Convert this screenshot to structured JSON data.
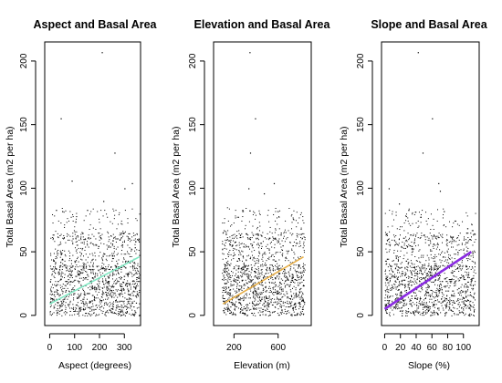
{
  "chart_data": [
    {
      "type": "scatter",
      "title": "Aspect and Basal Area",
      "xlabel": "Aspect (degrees)",
      "ylabel": "Total Basal Area (m2 per ha)",
      "xlim": [
        -20,
        365
      ],
      "ylim": [
        -8,
        215
      ],
      "xticks": [
        0,
        100,
        200,
        300
      ],
      "yticks": [
        0,
        50,
        100,
        150,
        200
      ],
      "grid": false,
      "series": [
        {
          "kind": "points",
          "x_range": [
            0,
            360
          ],
          "outliers": [
            [
              209,
              207
            ],
            [
              44,
              155
            ],
            [
              260,
              128
            ],
            [
              88,
              106
            ],
            [
              330,
              104
            ],
            [
              300,
              100
            ],
            [
              25,
              83
            ],
            [
              50,
              82
            ],
            [
              150,
              83
            ],
            [
              215,
              90
            ]
          ]
        },
        {
          "kind": "trend",
          "color": "#7fe8c3",
          "x": [
            0,
            360
          ],
          "y": [
            9,
            46
          ]
        }
      ]
    },
    {
      "type": "scatter",
      "title": "Elevation and Basal Area",
      "xlabel": "Elevation (m)",
      "ylabel": "Total Basal Area (m2 per ha)",
      "xlim": [
        15,
        900
      ],
      "ylim": [
        -8,
        215
      ],
      "xticks": [
        200,
        600
      ],
      "yticks": [
        0,
        50,
        100,
        150,
        200
      ],
      "grid": false,
      "series": [
        {
          "kind": "points",
          "x_range": [
            90,
            840
          ],
          "outliers": [
            [
              340,
              207
            ],
            [
              390,
              155
            ],
            [
              345,
              128
            ],
            [
              560,
              104
            ],
            [
              470,
              96
            ],
            [
              330,
              100
            ],
            [
              275,
              83
            ],
            [
              595,
              82
            ]
          ]
        },
        {
          "kind": "trend",
          "color": "#e8b04a",
          "x": [
            100,
            830
          ],
          "y": [
            9,
            46
          ]
        }
      ]
    },
    {
      "type": "scatter",
      "title": "Slope and Basal Area",
      "xlabel": "Slope (%)",
      "ylabel": "Total Basal Area (m2 per ha)",
      "xlim": [
        -4,
        120
      ],
      "ylim": [
        -8,
        215
      ],
      "xticks": [
        0,
        20,
        40,
        60,
        80,
        100
      ],
      "yticks": [
        0,
        50,
        100,
        150,
        200
      ],
      "grid": false,
      "series": [
        {
          "kind": "points",
          "x_range": [
            0,
            115
          ],
          "outliers": [
            [
              42,
              207
            ],
            [
              60,
              155
            ],
            [
              48,
              128
            ],
            [
              68,
              104
            ],
            [
              70,
              98
            ],
            [
              5,
              100
            ],
            [
              30,
              83
            ],
            [
              75,
              82
            ],
            [
              18,
              88
            ]
          ]
        },
        {
          "kind": "trend",
          "color": "#8a2be2",
          "x": [
            0,
            110
          ],
          "y": [
            5,
            50
          ]
        }
      ]
    }
  ]
}
